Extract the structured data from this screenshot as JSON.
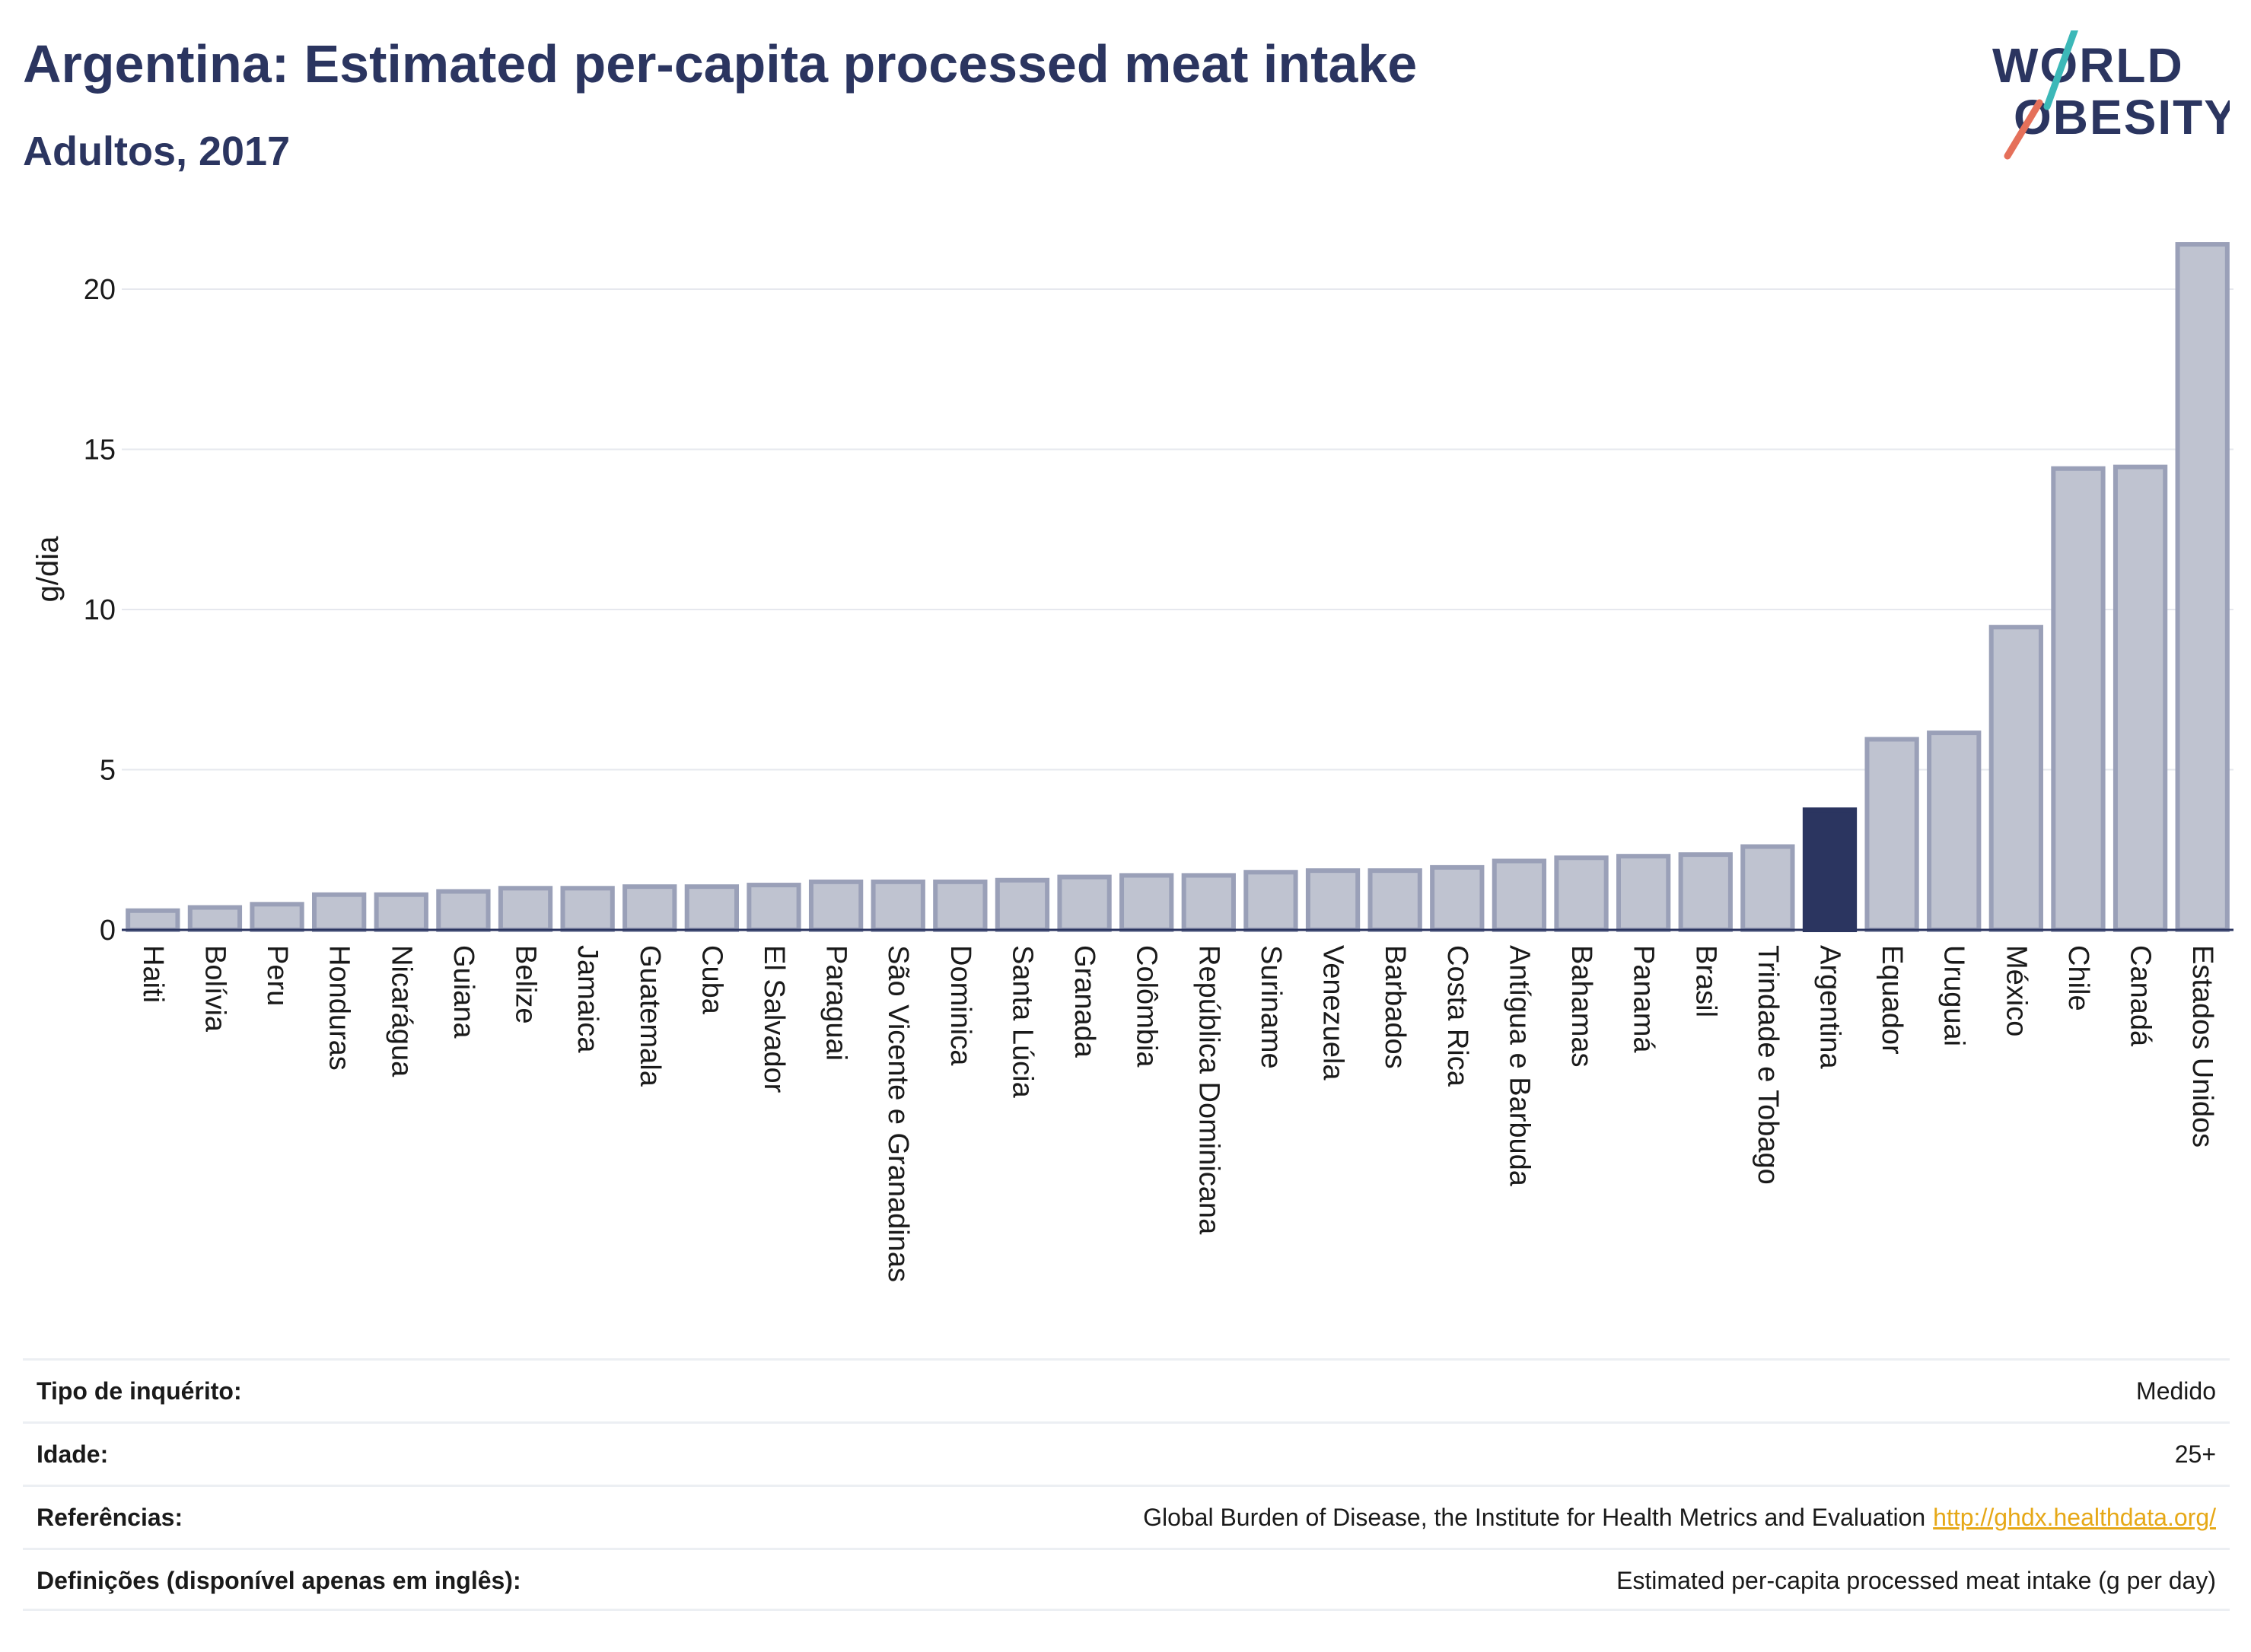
{
  "header": {
    "title": "Argentina: Estimated per-capita processed meat intake",
    "subtitle": "Adultos, 2017"
  },
  "logo": {
    "line1": "WORLD",
    "line2": "OBESITY"
  },
  "colors": {
    "bar_default": "#bfc3d0",
    "bar_border": "#9aa0b8",
    "bar_highlight": "#2b3560",
    "text": "#2b3560",
    "link": "#e6a817"
  },
  "chart_data": {
    "type": "bar",
    "ylabel": "g/dia",
    "xlabel": "",
    "ylim": [
      0,
      22
    ],
    "yticks": [
      0,
      5,
      10,
      15,
      20
    ],
    "grid": true,
    "highlight": "Argentina",
    "categories": [
      "Haiti",
      "Bolívia",
      "Peru",
      "Honduras",
      "Nicarágua",
      "Guiana",
      "Belize",
      "Jamaica",
      "Guatemala",
      "Cuba",
      "El Salvador",
      "Paraguai",
      "São Vicente e Granadinas",
      "Dominica",
      "Santa Lúcia",
      "Granada",
      "Colômbia",
      "República Dominicana",
      "Suriname",
      "Venezuela",
      "Barbados",
      "Costa Rica",
      "Antígua e Barbuda",
      "Bahamas",
      "Panamá",
      "Brasil",
      "Trindade e Tobago",
      "Argentina",
      "Equador",
      "Uruguai",
      "México",
      "Chile",
      "Canadá",
      "Estados Unidos"
    ],
    "values": [
      0.6,
      0.7,
      0.8,
      1.1,
      1.1,
      1.2,
      1.3,
      1.3,
      1.35,
      1.35,
      1.4,
      1.5,
      1.5,
      1.5,
      1.55,
      1.65,
      1.7,
      1.7,
      1.8,
      1.85,
      1.85,
      1.95,
      2.15,
      2.25,
      2.3,
      2.35,
      2.6,
      3.75,
      5.95,
      6.15,
      9.45,
      14.4,
      14.45,
      21.4
    ]
  },
  "meta": [
    {
      "label": "Tipo de inquérito:",
      "value": "Medido",
      "link": ""
    },
    {
      "label": "Idade:",
      "value": "25+",
      "link": ""
    },
    {
      "label": "Referências:",
      "value": "Global Burden of Disease, the Institute for Health Metrics and Evaluation",
      "link": "http://ghdx.healthdata.org/"
    },
    {
      "label": "Definições (disponível apenas em inglês):",
      "value": "Estimated per-capita processed meat intake (g per day)",
      "link": ""
    }
  ]
}
